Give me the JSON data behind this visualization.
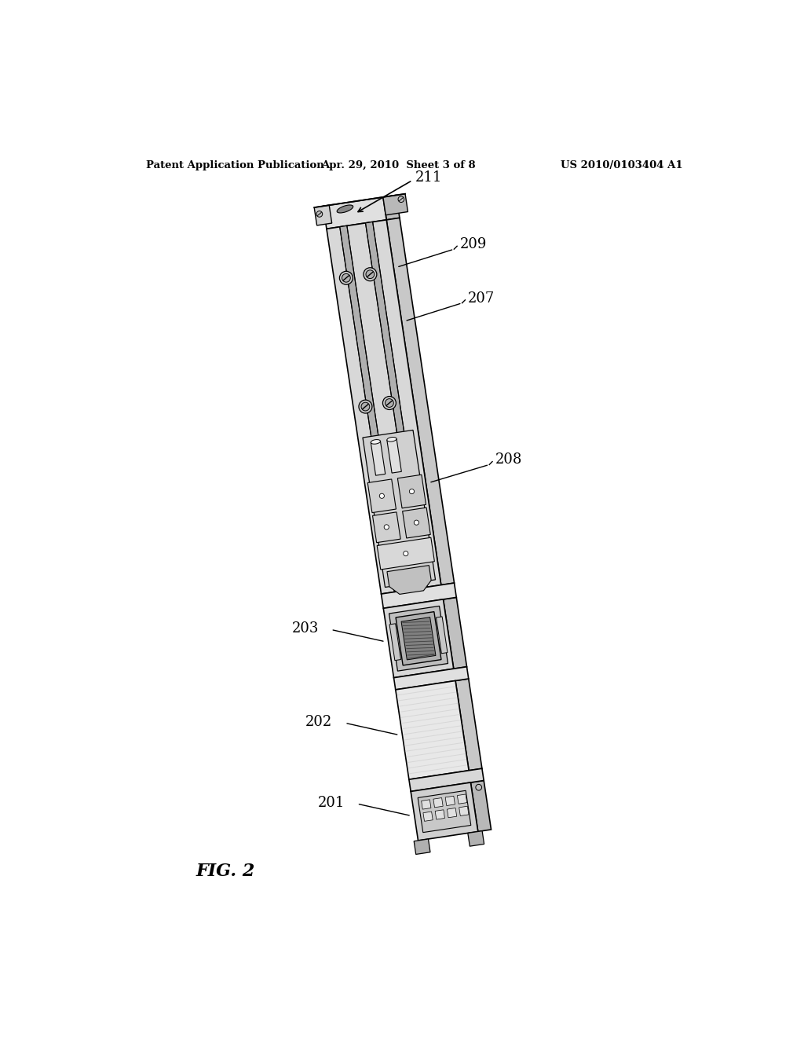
{
  "background_color": "#ffffff",
  "header_left": "Patent Application Publication",
  "header_center": "Apr. 29, 2010  Sheet 3 of 8",
  "header_right": "US 2010/0103404 A1",
  "figure_label": "FIG. 2",
  "line_color": "#000000",
  "fill_light": "#f0f0f0",
  "fill_mid": "#d8d8d8",
  "fill_dark": "#a0a0a0",
  "fill_darker": "#606060"
}
